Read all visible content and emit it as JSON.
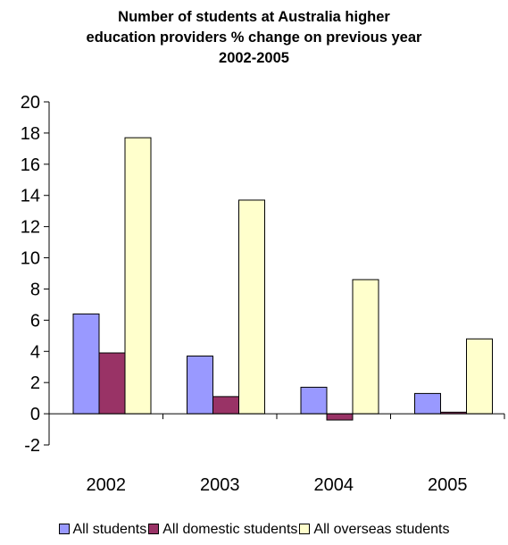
{
  "chart_data": {
    "type": "bar",
    "title_lines": [
      "Number of students at Australia higher",
      "education providers % change on previous year",
      "2002-2005"
    ],
    "categories": [
      "2002",
      "2003",
      "2004",
      "2005"
    ],
    "series": [
      {
        "name": "All students",
        "values": [
          6.4,
          3.7,
          1.7,
          1.3
        ],
        "color": "#9999FF"
      },
      {
        "name": "All domestic students",
        "values": [
          3.9,
          1.1,
          -0.4,
          0.1
        ],
        "color": "#993366"
      },
      {
        "name": "All overseas students",
        "values": [
          17.7,
          13.7,
          8.6,
          4.8
        ],
        "color": "#FFFFCC"
      }
    ],
    "ylim": [
      -2,
      20
    ],
    "yticks": [
      -2,
      0,
      2,
      4,
      6,
      8,
      10,
      12,
      14,
      16,
      18,
      20
    ],
    "grid": false,
    "legend_position": "bottom"
  }
}
